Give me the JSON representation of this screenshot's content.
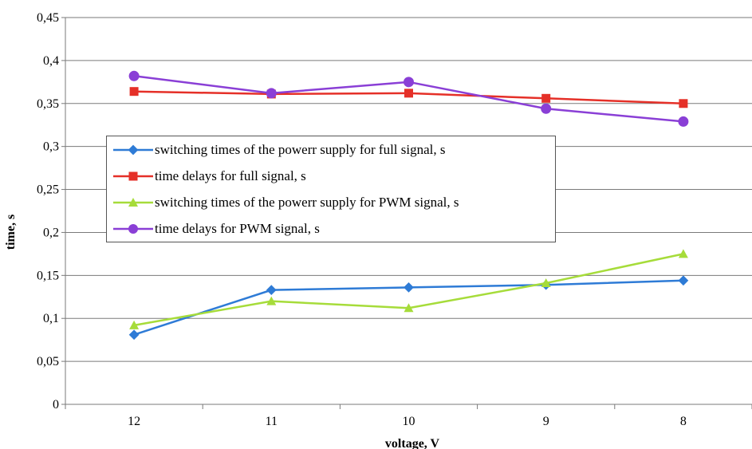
{
  "chart_data": {
    "type": "line",
    "title": "",
    "xlabel": "voltage, V",
    "ylabel": "time, s",
    "categories": [
      "12",
      "11",
      "10",
      "9",
      "8"
    ],
    "ylim": [
      0,
      0.45
    ],
    "yticks": [
      "0",
      "0,05",
      "0,1",
      "0,15",
      "0,2",
      "0,25",
      "0,3",
      "0,35",
      "0,4",
      "0,45"
    ],
    "grid": "horizontal",
    "legend_position": "center-left",
    "series": [
      {
        "name": "switching times of the powerr supply for full signal, s",
        "values": [
          0.081,
          0.133,
          0.136,
          0.139,
          0.144
        ],
        "color": "#2e7bd6",
        "marker": "diamond"
      },
      {
        "name": "time delays for full signal, s",
        "values": [
          0.364,
          0.361,
          0.362,
          0.356,
          0.35
        ],
        "color": "#e53028",
        "marker": "square"
      },
      {
        "name": "switching times of the powerr supply for PWM signal, s",
        "values": [
          0.092,
          0.12,
          0.112,
          0.141,
          0.175
        ],
        "color": "#a6dc3a",
        "marker": "triangle"
      },
      {
        "name": "time delays for PWM signal, s",
        "values": [
          0.382,
          0.362,
          0.375,
          0.344,
          0.329
        ],
        "color": "#8a3fd6",
        "marker": "circle"
      }
    ]
  }
}
